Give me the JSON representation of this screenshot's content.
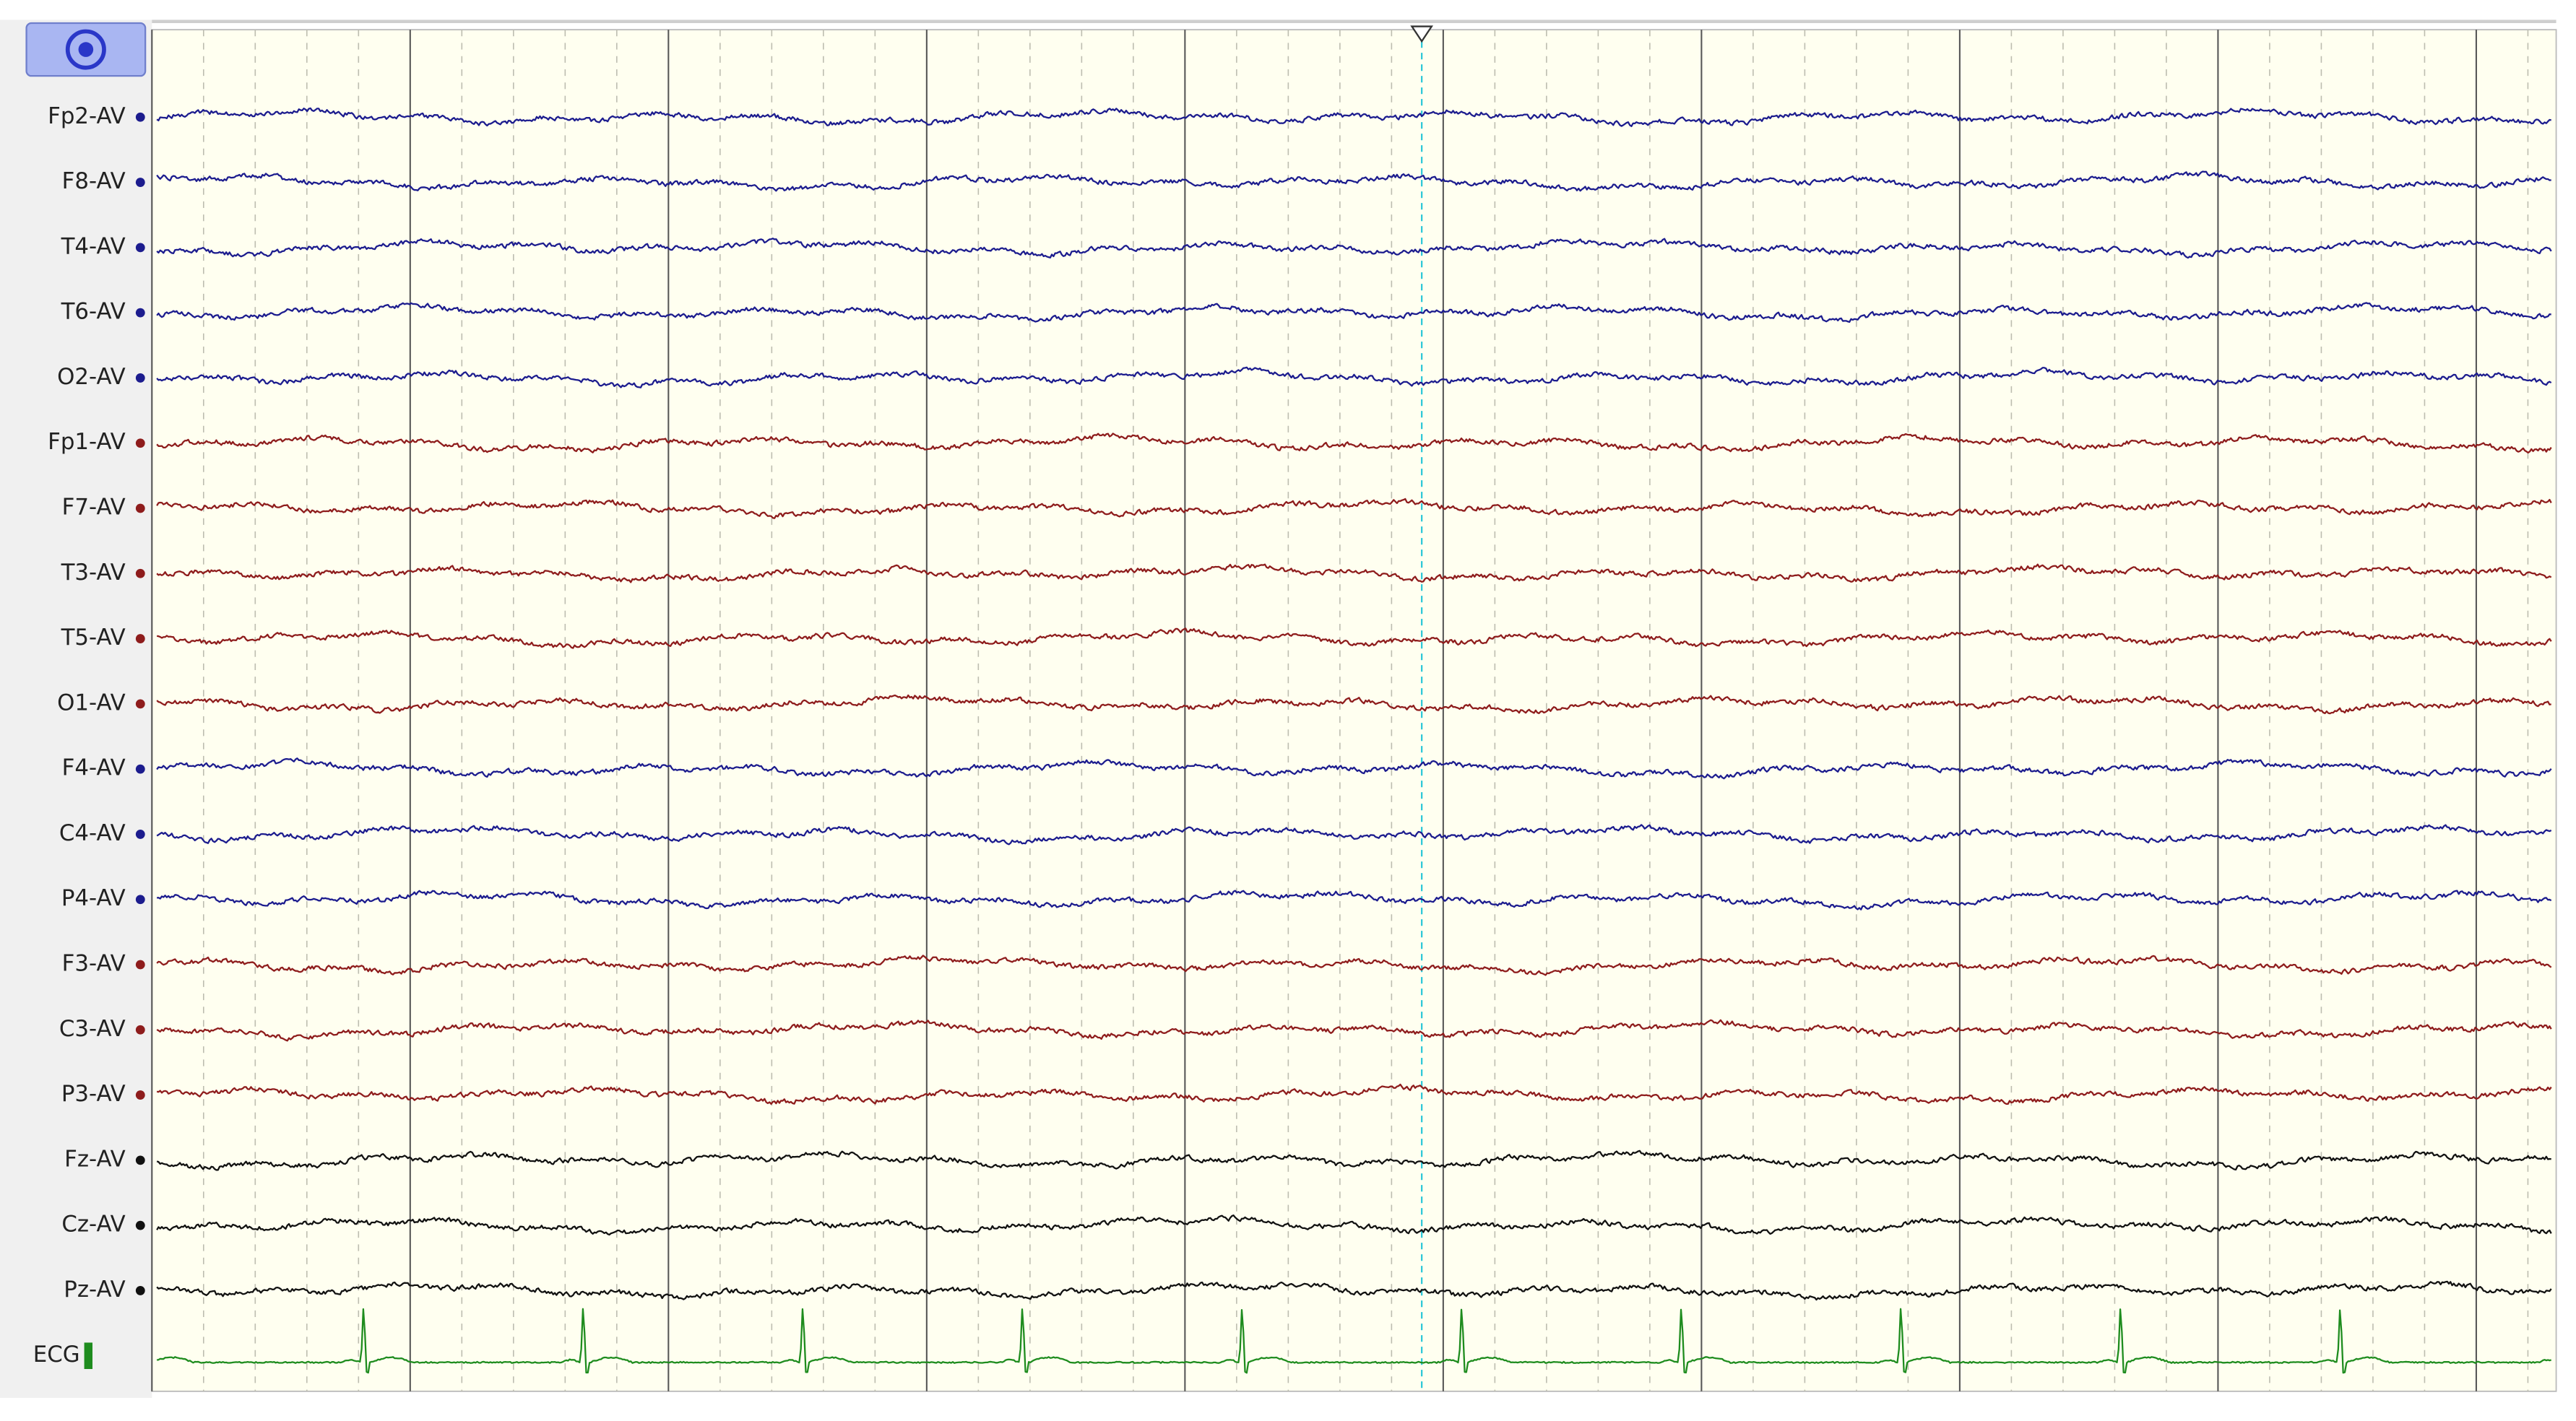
{
  "channels": [
    {
      "label": "Fp2-AV",
      "color": "#1c1c8e"
    },
    {
      "label": "F8-AV",
      "color": "#1c1c8e"
    },
    {
      "label": "T4-AV",
      "color": "#1c1c8e"
    },
    {
      "label": "T6-AV",
      "color": "#1c1c8e"
    },
    {
      "label": "O2-AV",
      "color": "#1c1c8e"
    },
    {
      "label": "Fp1-AV",
      "color": "#8e1c1c"
    },
    {
      "label": "F7-AV",
      "color": "#8e1c1c"
    },
    {
      "label": "T3-AV",
      "color": "#8e1c1c"
    },
    {
      "label": "T5-AV",
      "color": "#8e1c1c"
    },
    {
      "label": "O1-AV",
      "color": "#8e1c1c"
    },
    {
      "label": "F4-AV",
      "color": "#1c1c8e"
    },
    {
      "label": "C4-AV",
      "color": "#1c1c8e"
    },
    {
      "label": "P4-AV",
      "color": "#1c1c8e"
    },
    {
      "label": "F3-AV",
      "color": "#8e1c1c"
    },
    {
      "label": "C3-AV",
      "color": "#8e1c1c"
    },
    {
      "label": "P3-AV",
      "color": "#8e1c1c"
    },
    {
      "label": "Fz-AV",
      "color": "#111111"
    },
    {
      "label": "Cz-AV",
      "color": "#111111"
    },
    {
      "label": "Pz-AV",
      "color": "#111111"
    },
    {
      "label": "ECG",
      "color": "#1e8c1e"
    }
  ]
}
